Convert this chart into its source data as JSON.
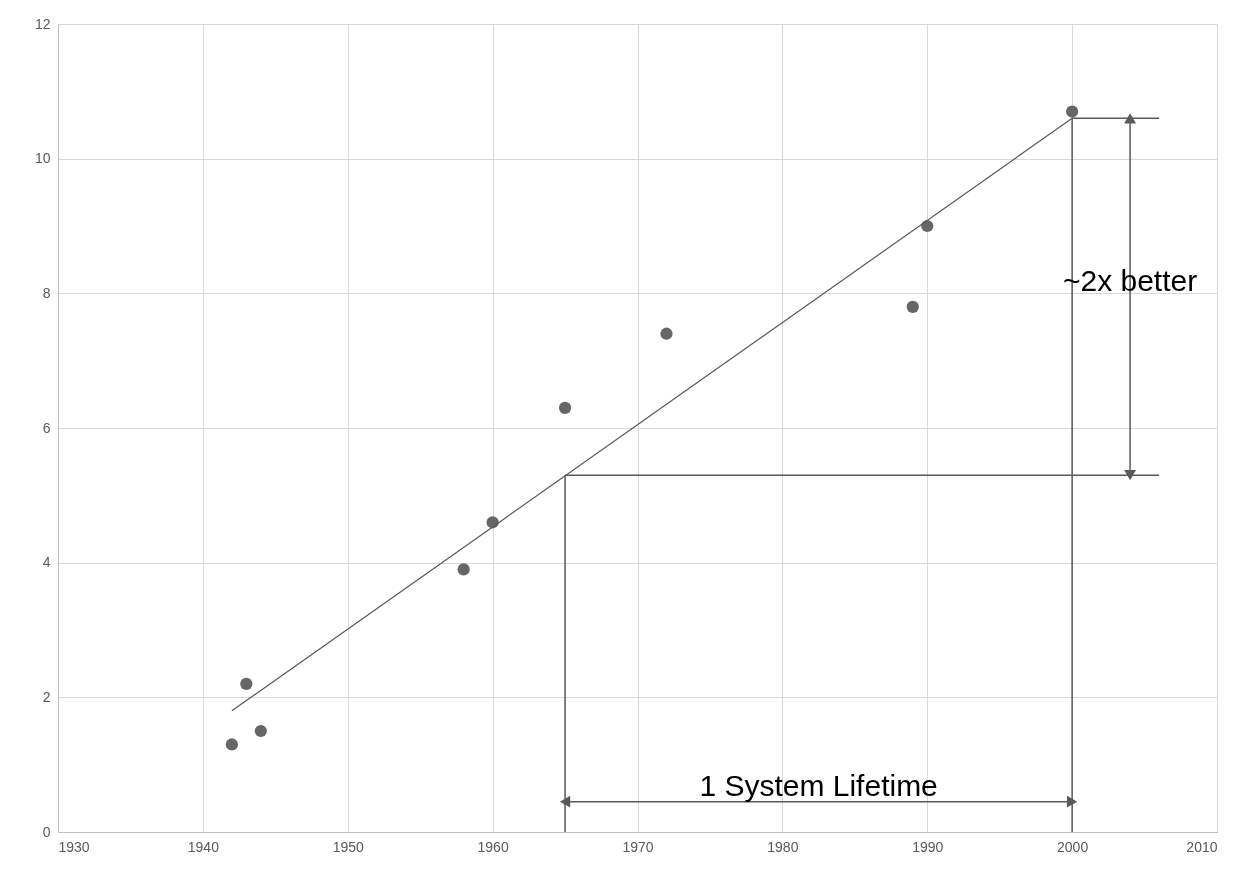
{
  "chart_data": {
    "type": "scatter",
    "xlim": [
      1930,
      2010
    ],
    "xticks": [
      1930,
      1940,
      1950,
      1960,
      1970,
      1980,
      1990,
      2000,
      2010
    ],
    "ylim": [
      0,
      12
    ],
    "yticks": [
      0,
      2,
      4,
      6,
      8,
      10,
      12
    ],
    "grid": true,
    "series": [
      {
        "marker": "circle",
        "color": "#666666",
        "x": [
          1942,
          1943,
          1944,
          1958,
          1960,
          1965,
          1972,
          1989,
          1990,
          2000
        ],
        "values": [
          1.3,
          2.2,
          1.5,
          3.9,
          4.6,
          6.3,
          7.4,
          7.8,
          9.0,
          10.7
        ]
      },
      {
        "type": "line",
        "color": "#595959",
        "x": [
          1942,
          2000
        ],
        "values": [
          1.8,
          10.6
        ]
      }
    ],
    "ref_lines": [
      {
        "axis": "x",
        "value": 1965,
        "color": "#595959"
      },
      {
        "axis": "x",
        "value": 2000,
        "color": "#595959"
      },
      {
        "axis": "y",
        "value": 5.3,
        "color": "#595959"
      }
    ],
    "annotations": [
      "1 System Lifetime",
      "~2x better"
    ]
  }
}
